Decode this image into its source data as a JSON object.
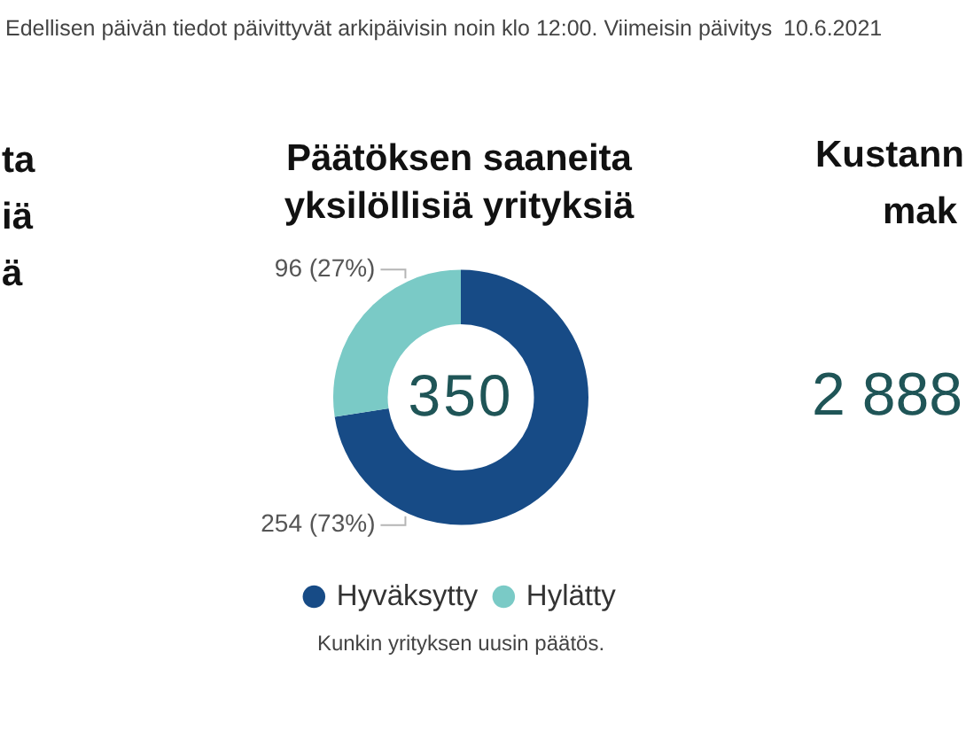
{
  "chart_data": [
    {
      "type": "other",
      "annotations": [
        "Edellisen päivän tiedot päivittyvät arkipäivisin noin klo 12:00. Viimeisin päivitys",
        "10.6.2021"
      ]
    },
    {
      "type": "other",
      "title": "ta\niä\nä"
    },
    {
      "type": "donut",
      "title": "Päätöksen saaneita yksilöllisiä yrityksiä",
      "categories": [
        "Hyväksytty",
        "Hylätty"
      ],
      "values": [
        254,
        96
      ],
      "colors": [
        "#174b86",
        "#7acac6"
      ],
      "value_labels": [
        "254 (73%)",
        "96 (27%)"
      ],
      "totals": [
        "350"
      ],
      "legend": "bottom",
      "annotations": [
        "Kunkin yrityksen uusin päätös."
      ]
    },
    {
      "type": "other",
      "title": "Kustann\nmak",
      "annotations": [
        "2 888"
      ]
    }
  ]
}
